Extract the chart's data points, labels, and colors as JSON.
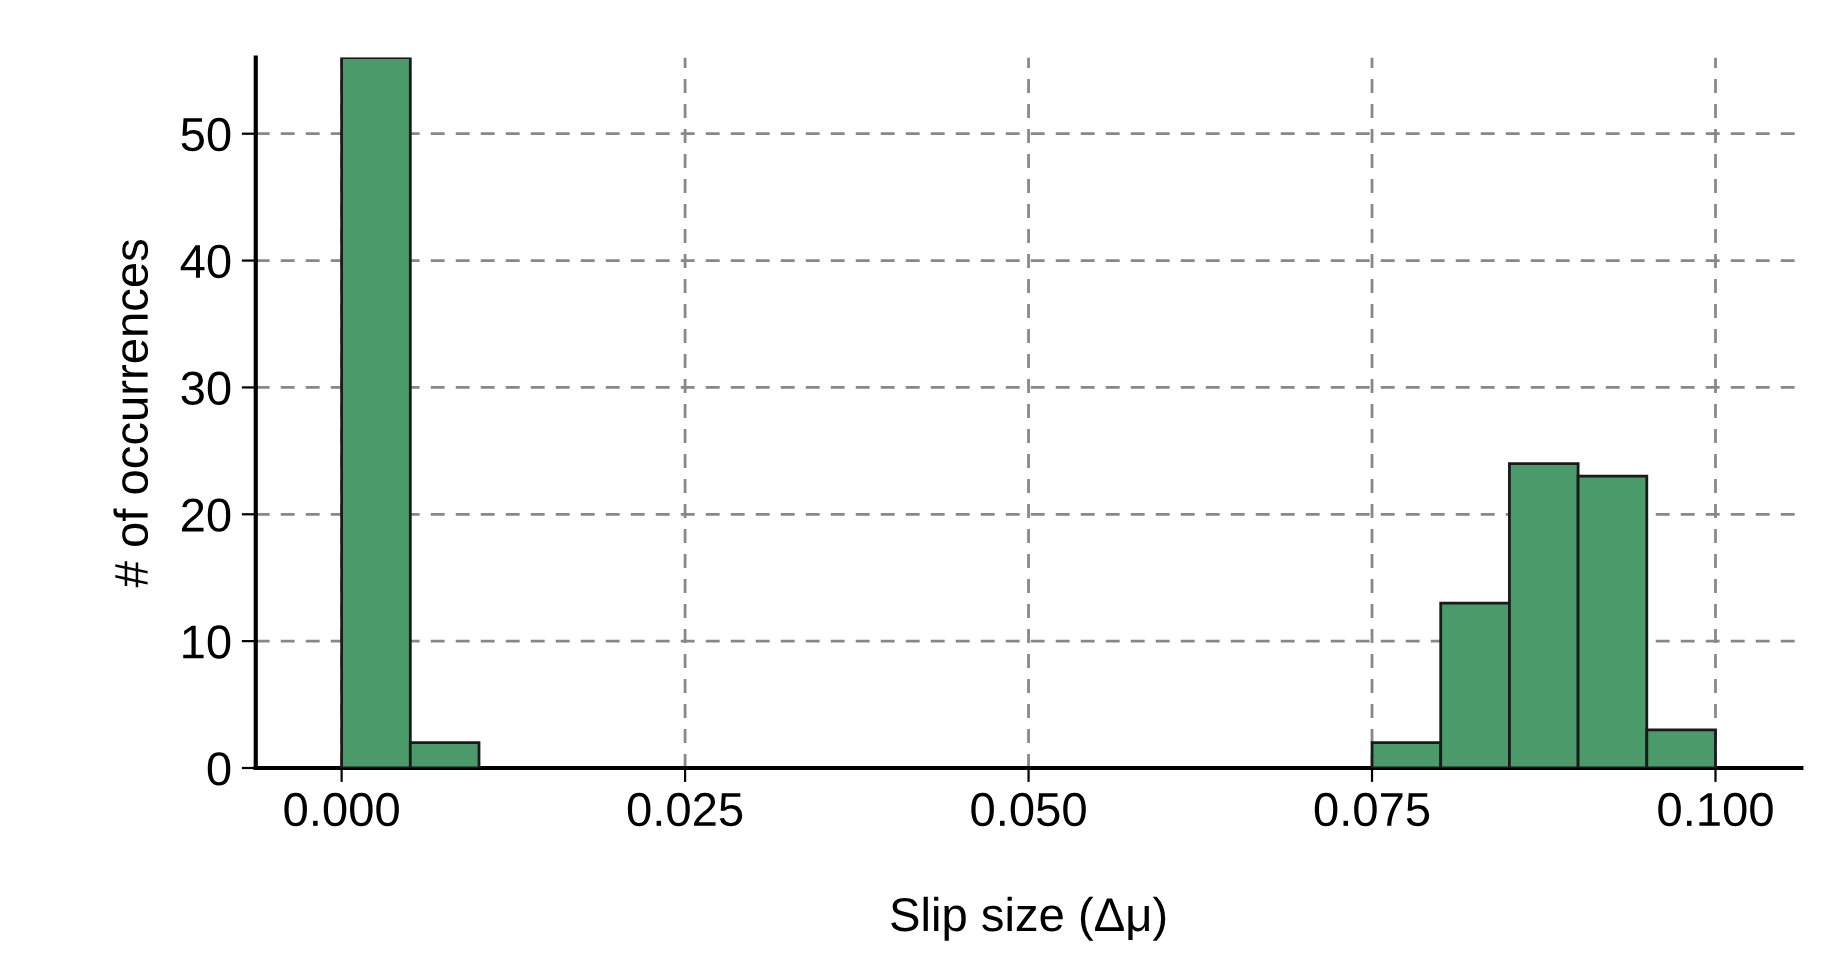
{
  "chart_data": {
    "type": "histogram",
    "xlabel": "Slip size (Δμ)",
    "ylabel": "# of occurrences",
    "bins": [
      0.0,
      0.005,
      0.01,
      0.015,
      0.02,
      0.025,
      0.03,
      0.035,
      0.04,
      0.045,
      0.05,
      0.055,
      0.06,
      0.065,
      0.07,
      0.075,
      0.08,
      0.085,
      0.09,
      0.095,
      0.1
    ],
    "values": [
      56,
      2,
      0,
      0,
      0,
      0,
      0,
      0,
      0,
      0,
      0,
      0,
      0,
      0,
      0,
      2,
      13,
      24,
      23,
      3
    ],
    "color": "#4a9a6a",
    "xlim": [
      -0.00625,
      0.10625
    ],
    "xticks": [
      {
        "value": 0,
        "label": "0.000"
      },
      {
        "value": 0.025,
        "label": "0.025"
      },
      {
        "value": 0.05,
        "label": "0.050"
      },
      {
        "value": 0.075,
        "label": "0.075"
      },
      {
        "value": 0.1,
        "label": "0.100"
      }
    ],
    "ylim": [
      0,
      56
    ],
    "yticks": [
      0,
      10,
      20,
      30,
      40,
      50
    ],
    "grid": true
  }
}
